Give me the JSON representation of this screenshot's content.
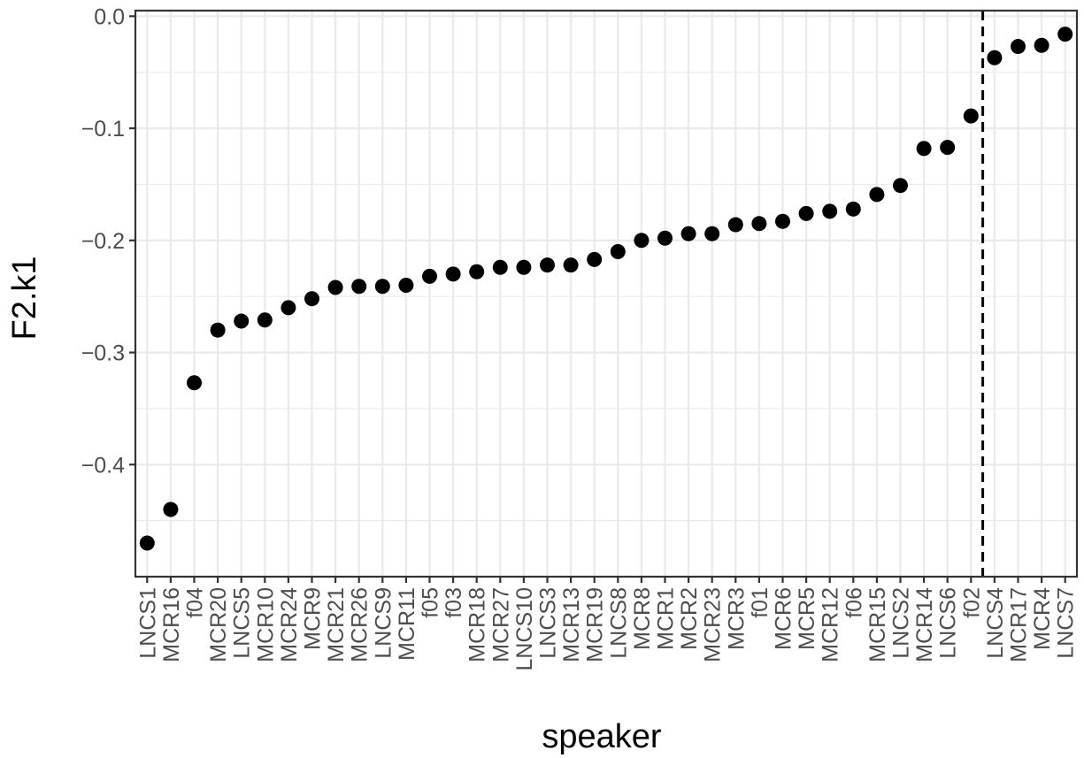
{
  "chart_data": {
    "type": "scatter",
    "xlabel": "speaker",
    "ylabel": "F2.k1",
    "ylim": [
      -0.5,
      0.005
    ],
    "yticks": [
      0.0,
      -0.1,
      -0.2,
      -0.3,
      -0.4
    ],
    "ytick_labels": [
      "0.0",
      "−0.1",
      "−0.2",
      "−0.3",
      "−0.4"
    ],
    "grid": true,
    "theme": "bw",
    "point_color": "#000000",
    "vline": {
      "after_category": "f02",
      "style": "dashed",
      "color": "#000000"
    },
    "categories": [
      "LNCS1",
      "MCR16",
      "f04",
      "MCR20",
      "LNCS5",
      "MCR10",
      "MCR24",
      "MCR9",
      "MCR21",
      "MCR26",
      "LNCS9",
      "MCR11",
      "f05",
      "f03",
      "MCR18",
      "MCR27",
      "LNCS10",
      "LNCS3",
      "MCR13",
      "MCR19",
      "LNCS8",
      "MCR8",
      "MCR1",
      "MCR2",
      "MCR23",
      "MCR3",
      "f01",
      "MCR6",
      "MCR5",
      "MCR12",
      "f06",
      "MCR15",
      "LNCS2",
      "MCR14",
      "LNCS6",
      "f02",
      "LNCS4",
      "MCR17",
      "MCR4",
      "LNCS7"
    ],
    "values": [
      -0.47,
      -0.44,
      -0.327,
      -0.28,
      -0.272,
      -0.271,
      -0.26,
      -0.252,
      -0.242,
      -0.241,
      -0.241,
      -0.24,
      -0.232,
      -0.23,
      -0.228,
      -0.224,
      -0.224,
      -0.222,
      -0.222,
      -0.217,
      -0.21,
      -0.2,
      -0.198,
      -0.194,
      -0.194,
      -0.186,
      -0.185,
      -0.183,
      -0.176,
      -0.174,
      -0.172,
      -0.159,
      -0.151,
      -0.118,
      -0.117,
      -0.089,
      -0.037,
      -0.027,
      -0.026,
      -0.016
    ]
  }
}
